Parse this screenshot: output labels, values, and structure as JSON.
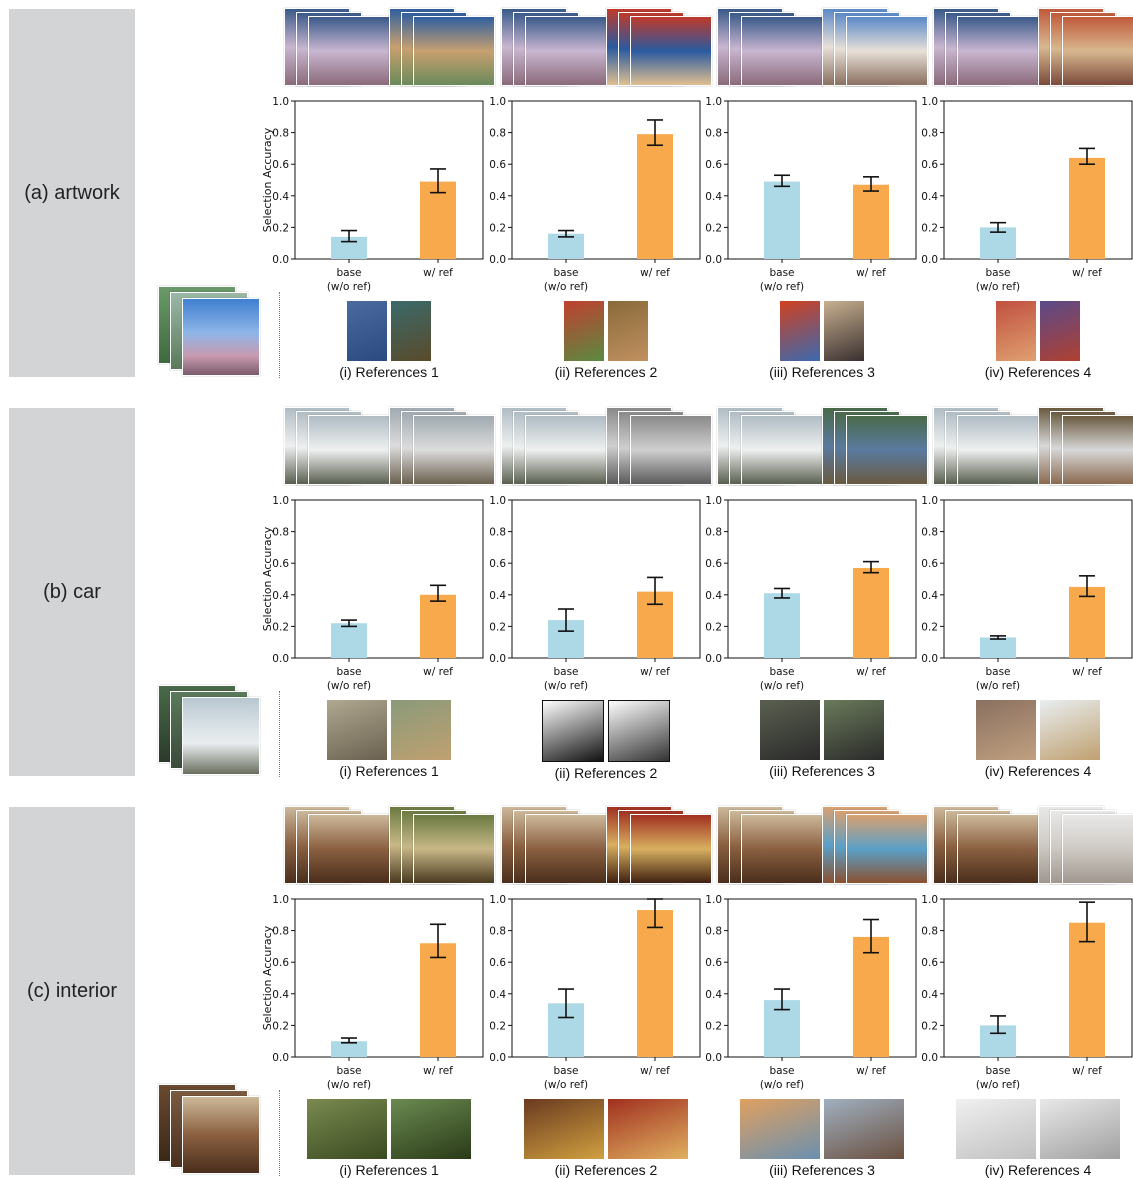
{
  "colors": {
    "base": "#add8e6",
    "ref": "#f8a94c",
    "label_bg": "#d3d4d6"
  },
  "rows": [
    {
      "label": "(a) artwork"
    },
    {
      "label": "(b) car"
    },
    {
      "label": "(c) interior"
    }
  ],
  "references": [
    [
      "(i) References 1",
      "(ii) References 2",
      "(iii) References 3",
      "(iv) References 4"
    ],
    [
      "(i) References 1",
      "(ii) References 2",
      "(iii) References 3",
      "(iv) References 4"
    ],
    [
      "(i) References 1",
      "(ii) References 2",
      "(iii) References 3",
      "(iv) References 4"
    ]
  ],
  "chart_data": [
    {
      "type": "bar",
      "row": "(a) artwork",
      "panel": "(i) References 1",
      "categories": [
        "base\n(w/o ref)",
        "w/ ref"
      ],
      "values": [
        0.14,
        0.49
      ],
      "errors": [
        [
          0.11,
          0.18
        ],
        [
          0.42,
          0.57
        ]
      ],
      "ylabel": "Selection Accuracy",
      "ylim": [
        0,
        1
      ],
      "yticks": [
        0.0,
        0.2,
        0.4,
        0.6,
        0.8,
        1.0
      ]
    },
    {
      "type": "bar",
      "row": "(a) artwork",
      "panel": "(ii) References 2",
      "categories": [
        "base\n(w/o ref)",
        "w/ ref"
      ],
      "values": [
        0.16,
        0.79
      ],
      "errors": [
        [
          0.14,
          0.18
        ],
        [
          0.72,
          0.88
        ]
      ],
      "ylabel": "",
      "ylim": [
        0,
        1
      ],
      "yticks": [
        0.0,
        0.2,
        0.4,
        0.6,
        0.8,
        1.0
      ]
    },
    {
      "type": "bar",
      "row": "(a) artwork",
      "panel": "(iii) References 3",
      "categories": [
        "base\n(w/o ref)",
        "w/ ref"
      ],
      "values": [
        0.49,
        0.47
      ],
      "errors": [
        [
          0.46,
          0.53
        ],
        [
          0.43,
          0.52
        ]
      ],
      "ylabel": "",
      "ylim": [
        0,
        1
      ],
      "yticks": [
        0.0,
        0.2,
        0.4,
        0.6,
        0.8,
        1.0
      ]
    },
    {
      "type": "bar",
      "row": "(a) artwork",
      "panel": "(iv) References 4",
      "categories": [
        "base\n(w/o ref)",
        "w/ ref"
      ],
      "values": [
        0.2,
        0.64
      ],
      "errors": [
        [
          0.17,
          0.23
        ],
        [
          0.6,
          0.7
        ]
      ],
      "ylabel": "",
      "ylim": [
        0,
        1
      ],
      "yticks": [
        0.0,
        0.2,
        0.4,
        0.6,
        0.8,
        1.0
      ]
    },
    {
      "type": "bar",
      "row": "(b) car",
      "panel": "(i) References 1",
      "categories": [
        "base\n(w/o ref)",
        "w/ ref"
      ],
      "values": [
        0.22,
        0.4
      ],
      "errors": [
        [
          0.2,
          0.24
        ],
        [
          0.36,
          0.46
        ]
      ],
      "ylabel": "Selection Accuracy",
      "ylim": [
        0,
        1
      ],
      "yticks": [
        0.0,
        0.2,
        0.4,
        0.6,
        0.8,
        1.0
      ]
    },
    {
      "type": "bar",
      "row": "(b) car",
      "panel": "(ii) References 2",
      "categories": [
        "base\n(w/o ref)",
        "w/ ref"
      ],
      "values": [
        0.24,
        0.42
      ],
      "errors": [
        [
          0.17,
          0.31
        ],
        [
          0.34,
          0.51
        ]
      ],
      "ylabel": "",
      "ylim": [
        0,
        1
      ],
      "yticks": [
        0.0,
        0.2,
        0.4,
        0.6,
        0.8,
        1.0
      ]
    },
    {
      "type": "bar",
      "row": "(b) car",
      "panel": "(iii) References 3",
      "categories": [
        "base\n(w/o ref)",
        "w/ ref"
      ],
      "values": [
        0.41,
        0.57
      ],
      "errors": [
        [
          0.38,
          0.44
        ],
        [
          0.54,
          0.61
        ]
      ],
      "ylabel": "",
      "ylim": [
        0,
        1
      ],
      "yticks": [
        0.0,
        0.2,
        0.4,
        0.6,
        0.8,
        1.0
      ]
    },
    {
      "type": "bar",
      "row": "(b) car",
      "panel": "(iv) References 4",
      "categories": [
        "base\n(w/o ref)",
        "w/ ref"
      ],
      "values": [
        0.13,
        0.45
      ],
      "errors": [
        [
          0.12,
          0.14
        ],
        [
          0.39,
          0.52
        ]
      ],
      "ylabel": "",
      "ylim": [
        0,
        1
      ],
      "yticks": [
        0.0,
        0.2,
        0.4,
        0.6,
        0.8,
        1.0
      ]
    },
    {
      "type": "bar",
      "row": "(c) interior",
      "panel": "(i) References 1",
      "categories": [
        "base\n(w/o ref)",
        "w/ ref"
      ],
      "values": [
        0.1,
        0.72
      ],
      "errors": [
        [
          0.09,
          0.12
        ],
        [
          0.63,
          0.84
        ]
      ],
      "ylabel": "Selection Accuracy",
      "ylim": [
        0,
        1
      ],
      "yticks": [
        0.0,
        0.2,
        0.4,
        0.6,
        0.8,
        1.0
      ]
    },
    {
      "type": "bar",
      "row": "(c) interior",
      "panel": "(ii) References 2",
      "categories": [
        "base\n(w/o ref)",
        "w/ ref"
      ],
      "values": [
        0.34,
        0.93
      ],
      "errors": [
        [
          0.25,
          0.43
        ],
        [
          0.82,
          1.0
        ]
      ],
      "ylabel": "",
      "ylim": [
        0,
        1
      ],
      "yticks": [
        0.0,
        0.2,
        0.4,
        0.6,
        0.8,
        1.0
      ]
    },
    {
      "type": "bar",
      "row": "(c) interior",
      "panel": "(iii) References 3",
      "categories": [
        "base\n(w/o ref)",
        "w/ ref"
      ],
      "values": [
        0.36,
        0.76
      ],
      "errors": [
        [
          0.3,
          0.43
        ],
        [
          0.66,
          0.87
        ]
      ],
      "ylabel": "",
      "ylim": [
        0,
        1
      ],
      "yticks": [
        0.0,
        0.2,
        0.4,
        0.6,
        0.8,
        1.0
      ]
    },
    {
      "type": "bar",
      "row": "(c) interior",
      "panel": "(iv) References 4",
      "categories": [
        "base\n(w/o ref)",
        "w/ ref"
      ],
      "values": [
        0.2,
        0.85
      ],
      "errors": [
        [
          0.15,
          0.26
        ],
        [
          0.73,
          0.98
        ]
      ],
      "ylabel": "",
      "ylim": [
        0,
        1
      ],
      "yticks": [
        0.0,
        0.2,
        0.4,
        0.6,
        0.8,
        1.0
      ]
    }
  ]
}
